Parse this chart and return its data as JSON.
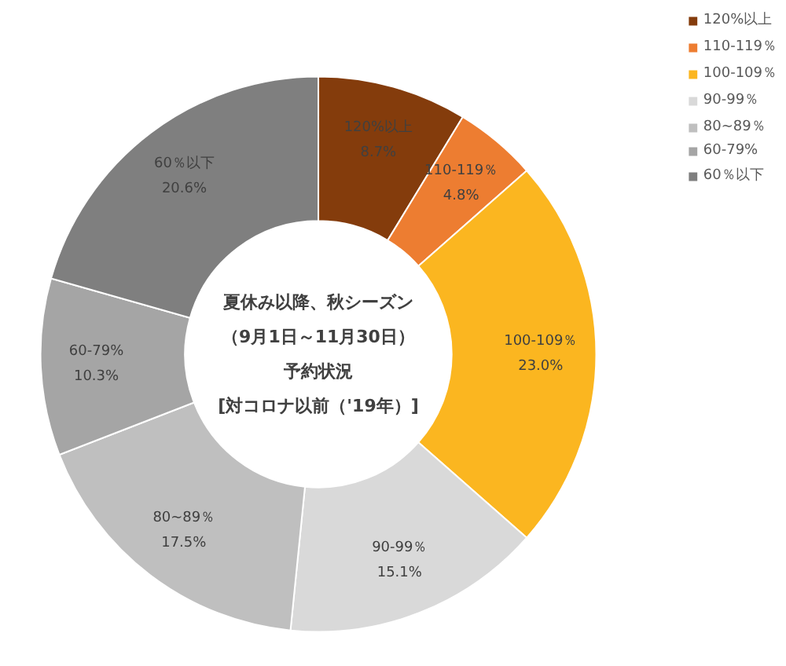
{
  "chart_data": {
    "type": "donut",
    "title": "夏休み以降、秋シーズン（9月1日～11月30日）予約状況[対コロナ以前（'19年）]",
    "categories": [
      "120%以上",
      "110-119％",
      "100-109％",
      "90-99％",
      "80~89％",
      "60-79%",
      "60％以下"
    ],
    "values": [
      8.7,
      4.8,
      23.0,
      15.1,
      17.5,
      10.3,
      20.6
    ],
    "value_labels": [
      "8.7%",
      "4.8%",
      "23.0%",
      "15.1%",
      "17.5%",
      "10.3%",
      "20.6%"
    ],
    "colors": [
      "#843c0c",
      "#ed7d31",
      "#fbb620",
      "#d9d9d9",
      "#bfbfbf",
      "#a5a5a5",
      "#7f7f7f"
    ],
    "legend": "top right"
  }
}
